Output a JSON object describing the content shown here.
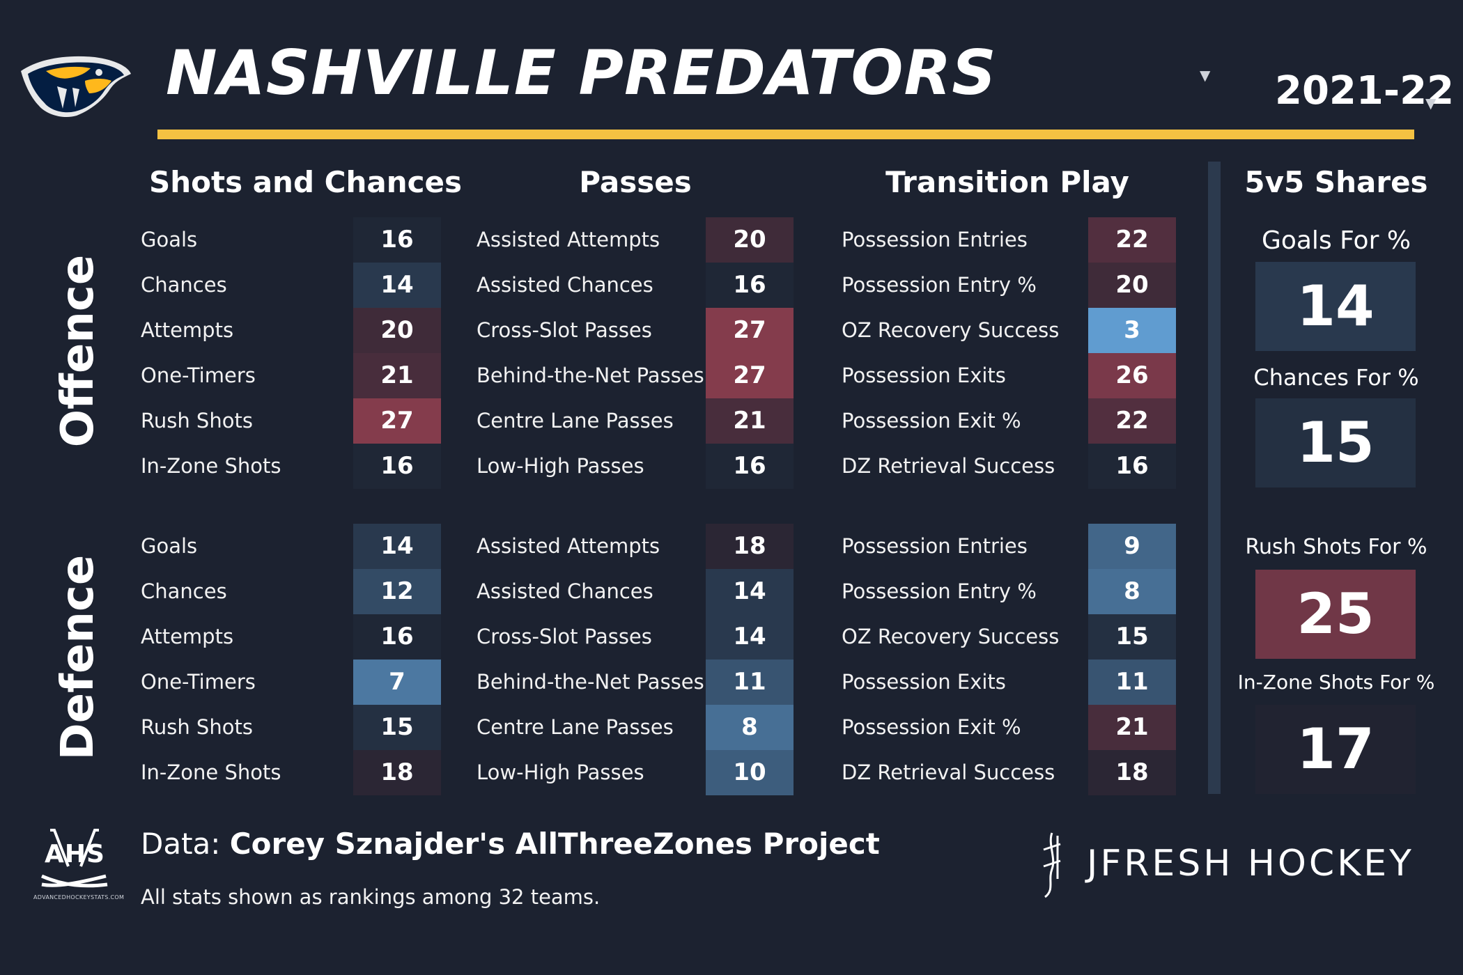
{
  "header": {
    "team_name": "NASHVILLE PREDATORS",
    "season": "2021-22",
    "accent_color": "#f4c242",
    "caret_icon": "caret-down-icon"
  },
  "sections": {
    "shots": "Shots and Chances",
    "passes": "Passes",
    "transition": "Transition Play",
    "shares": "5v5 Shares"
  },
  "groups": {
    "offence": "Offence",
    "defence": "Defence"
  },
  "labels": {
    "shots": [
      "Goals",
      "Chances",
      "Attempts",
      "One-Timers",
      "Rush Shots",
      "In-Zone Shots"
    ],
    "passes": [
      "Assisted Attempts",
      "Assisted Chances",
      "Cross-Slot Passes",
      "Behind-the-Net Passes",
      "Centre Lane Passes",
      "Low-High Passes"
    ],
    "transition": [
      "Possession Entries",
      "Possession Entry %",
      "OZ Recovery Success",
      "Possession Exits",
      "Possession Exit %",
      "DZ Retrieval Success"
    ]
  },
  "offence": {
    "shots": [
      16,
      14,
      20,
      21,
      27,
      16
    ],
    "passes": [
      20,
      16,
      27,
      27,
      21,
      16
    ],
    "transition": [
      22,
      20,
      3,
      26,
      22,
      16
    ]
  },
  "defence": {
    "shots": [
      14,
      12,
      16,
      7,
      15,
      18
    ],
    "passes": [
      18,
      14,
      14,
      11,
      8,
      10
    ],
    "transition": [
      9,
      8,
      15,
      11,
      21,
      18
    ]
  },
  "shares": [
    {
      "label": "Goals For %",
      "value": 14
    },
    {
      "label": "Chances For %",
      "value": 15
    },
    {
      "label": "Rush Shots For %",
      "value": 25
    },
    {
      "label": "In-Zone Shots For %",
      "value": 17
    }
  ],
  "footer": {
    "data_prefix": "Data: ",
    "data_source": "Corey Sznajder's AllThreeZones Project",
    "note": "All stats shown as rankings among 32 teams.",
    "ahs_logo_text": "AHS",
    "ahs_url_text": "ADVANCEDHOCKEYSTATS.COM",
    "brand": "JFRESH HOCKEY"
  },
  "color_scale": {
    "best": "#6aaee8",
    "neutral": "#1c2230",
    "worst": "#b5485a",
    "ranking_count": 32
  }
}
